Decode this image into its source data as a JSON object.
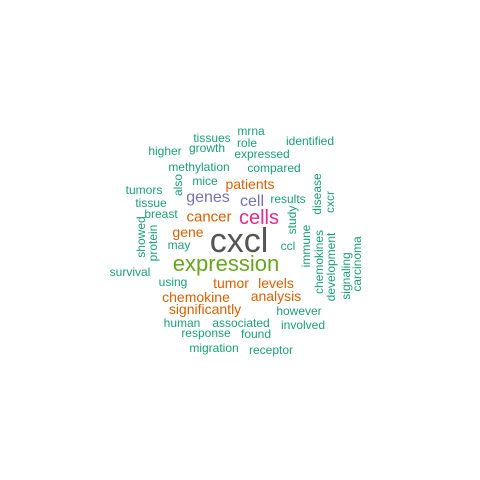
{
  "palette": {
    "teal": "#1b9e77",
    "dark_gray": "#555555",
    "green": "#66a61e",
    "orange": "#d95f02",
    "magenta": "#e7298a",
    "purple": "#7570b3"
  },
  "words": [
    {
      "id": "cxcl",
      "text": "cxcl",
      "color": "#555555"
    },
    {
      "id": "expression",
      "text": "expression",
      "color": "#66a61e"
    },
    {
      "id": "cells",
      "text": "cells",
      "color": "#e7298a"
    },
    {
      "id": "genes",
      "text": "genes",
      "color": "#7570b3"
    },
    {
      "id": "cell",
      "text": "cell",
      "color": "#7570b3"
    },
    {
      "id": "cancer",
      "text": "cancer",
      "color": "#d95f02"
    },
    {
      "id": "patients",
      "text": "patients",
      "color": "#d95f02"
    },
    {
      "id": "gene",
      "text": "gene",
      "color": "#d95f02"
    },
    {
      "id": "tumor",
      "text": "tumor",
      "color": "#d95f02"
    },
    {
      "id": "levels",
      "text": "levels",
      "color": "#d95f02"
    },
    {
      "id": "chemokine",
      "text": "chemokine",
      "color": "#d95f02"
    },
    {
      "id": "analysis",
      "text": "analysis",
      "color": "#d95f02"
    },
    {
      "id": "significantly",
      "text": "significantly",
      "color": "#d95f02"
    },
    {
      "id": "mrna",
      "text": "mrna",
      "color": "#1b9e77"
    },
    {
      "id": "tissues",
      "text": "tissues",
      "color": "#1b9e77"
    },
    {
      "id": "role",
      "text": "role",
      "color": "#1b9e77"
    },
    {
      "id": "identified",
      "text": "identified",
      "color": "#1b9e77"
    },
    {
      "id": "higher",
      "text": "higher",
      "color": "#1b9e77"
    },
    {
      "id": "growth",
      "text": "growth",
      "color": "#1b9e77"
    },
    {
      "id": "expressed",
      "text": "expressed",
      "color": "#1b9e77"
    },
    {
      "id": "methylation",
      "text": "methylation",
      "color": "#1b9e77"
    },
    {
      "id": "compared",
      "text": "compared",
      "color": "#1b9e77"
    },
    {
      "id": "tumors",
      "text": "tumors",
      "color": "#1b9e77"
    },
    {
      "id": "also",
      "text": "also",
      "color": "#1b9e77"
    },
    {
      "id": "mice",
      "text": "mice",
      "color": "#1b9e77"
    },
    {
      "id": "disease",
      "text": "disease",
      "color": "#1b9e77"
    },
    {
      "id": "tissue",
      "text": "tissue",
      "color": "#1b9e77"
    },
    {
      "id": "results",
      "text": "results",
      "color": "#1b9e77"
    },
    {
      "id": "cxcr",
      "text": "cxcr",
      "color": "#1b9e77"
    },
    {
      "id": "breast",
      "text": "breast",
      "color": "#1b9e77"
    },
    {
      "id": "study",
      "text": "study",
      "color": "#1b9e77"
    },
    {
      "id": "immune",
      "text": "immune",
      "color": "#1b9e77"
    },
    {
      "id": "showed",
      "text": "showed",
      "color": "#1b9e77"
    },
    {
      "id": "protein",
      "text": "protein",
      "color": "#1b9e77"
    },
    {
      "id": "chemokines",
      "text": "chemokines",
      "color": "#1b9e77"
    },
    {
      "id": "may",
      "text": "may",
      "color": "#1b9e77"
    },
    {
      "id": "ccl",
      "text": "ccl",
      "color": "#1b9e77"
    },
    {
      "id": "development",
      "text": "development",
      "color": "#1b9e77"
    },
    {
      "id": "carcinoma",
      "text": "carcinoma",
      "color": "#1b9e77"
    },
    {
      "id": "signaling",
      "text": "signaling",
      "color": "#1b9e77"
    },
    {
      "id": "survival",
      "text": "survival",
      "color": "#1b9e77"
    },
    {
      "id": "using",
      "text": "using",
      "color": "#1b9e77"
    },
    {
      "id": "however",
      "text": "however",
      "color": "#1b9e77"
    },
    {
      "id": "human",
      "text": "human",
      "color": "#1b9e77"
    },
    {
      "id": "associated",
      "text": "associated",
      "color": "#1b9e77"
    },
    {
      "id": "involved",
      "text": "involved",
      "color": "#1b9e77"
    },
    {
      "id": "response",
      "text": "response",
      "color": "#1b9e77"
    },
    {
      "id": "found",
      "text": "found",
      "color": "#1b9e77"
    },
    {
      "id": "migration",
      "text": "migration",
      "color": "#1b9e77"
    },
    {
      "id": "receptor",
      "text": "receptor",
      "color": "#1b9e77"
    }
  ]
}
